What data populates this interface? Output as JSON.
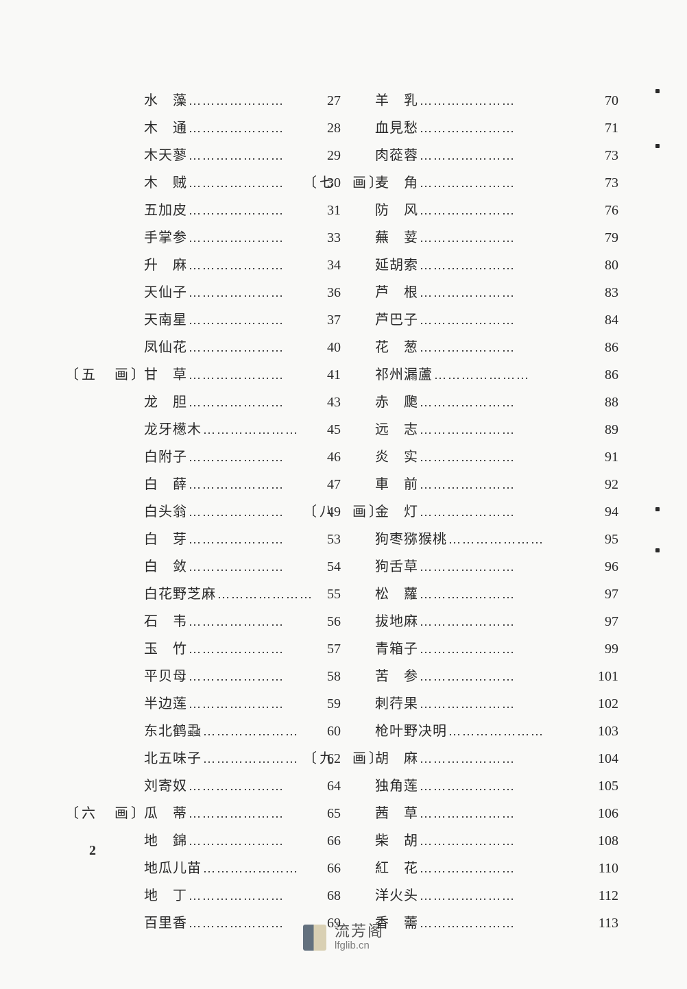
{
  "page_number": "2",
  "watermark": {
    "cn": "流芳阁",
    "en": "lfglib.cn"
  },
  "columns": [
    {
      "entries": [
        {
          "name": "水　藻",
          "page": "27"
        },
        {
          "name": "木　通",
          "page": "28"
        },
        {
          "name": "木天蓼",
          "page": "29"
        },
        {
          "name": "木　贼",
          "page": "30"
        },
        {
          "name": "五加皮",
          "page": "31"
        },
        {
          "name": "手掌参",
          "page": "33"
        },
        {
          "name": "升　麻",
          "page": "34"
        },
        {
          "name": "天仙子",
          "page": "36"
        },
        {
          "name": "天南星",
          "page": "37"
        },
        {
          "name": "凤仙花",
          "page": "40"
        },
        {
          "section": "〔五　画〕",
          "name": "甘　草",
          "page": "41"
        },
        {
          "name": "龙　胆",
          "page": "43"
        },
        {
          "name": "龙牙檧木",
          "page": "45"
        },
        {
          "name": "白附子",
          "page": "46"
        },
        {
          "name": "白　薛",
          "page": "47"
        },
        {
          "name": "白头翁",
          "page": "49"
        },
        {
          "name": "白　芽",
          "page": "53"
        },
        {
          "name": "白　敛",
          "page": "54"
        },
        {
          "name": "白花野芝麻",
          "page": "55"
        },
        {
          "name": "石　韦",
          "page": "56"
        },
        {
          "name": "玉　竹",
          "page": "57"
        },
        {
          "name": "平贝母",
          "page": "58"
        },
        {
          "name": "半边莲",
          "page": "59"
        },
        {
          "name": "东北鹤蝨",
          "page": "60"
        },
        {
          "name": "北五味子",
          "page": "62"
        },
        {
          "name": "刘寄奴",
          "page": "64"
        },
        {
          "section": "〔六　画〕",
          "name": "瓜　蒂",
          "page": "65"
        },
        {
          "name": "地　錦",
          "page": "66"
        },
        {
          "name": "地瓜儿苗",
          "page": "66"
        },
        {
          "name": "地　丁",
          "page": "68"
        },
        {
          "name": "百里香",
          "page": "69"
        }
      ]
    },
    {
      "entries": [
        {
          "name": "羊　乳",
          "page": "70"
        },
        {
          "name": "血見愁",
          "page": "71"
        },
        {
          "name": "肉蓯蓉",
          "page": "73"
        },
        {
          "section": "〔七　画〕",
          "name": "麦　角",
          "page": "73"
        },
        {
          "name": "防　风",
          "page": "76"
        },
        {
          "name": "蕪　荽",
          "page": "79"
        },
        {
          "name": "延胡索",
          "page": "80"
        },
        {
          "name": "芦　根",
          "page": "83"
        },
        {
          "name": "芦巴子",
          "page": "84"
        },
        {
          "name": "花　葱",
          "page": "86"
        },
        {
          "name": "祁州漏蘆",
          "page": "86"
        },
        {
          "name": "赤　瓟",
          "page": "88"
        },
        {
          "name": "远　志",
          "page": "89"
        },
        {
          "name": "炎　实",
          "page": "91"
        },
        {
          "name": "車　前",
          "page": "92"
        },
        {
          "section": "〔八　画〕",
          "name": "金　灯",
          "page": "94"
        },
        {
          "name": "狗枣猕猴桃",
          "page": "95"
        },
        {
          "name": "狗舌草",
          "page": "96"
        },
        {
          "name": "松　蘿",
          "page": "97"
        },
        {
          "name": "拔地麻",
          "page": "97"
        },
        {
          "name": "青箱子",
          "page": "99"
        },
        {
          "name": "苦　参",
          "page": "101"
        },
        {
          "name": "刺荇果",
          "page": "102"
        },
        {
          "name": "枪叶野决明",
          "page": "103"
        },
        {
          "section": "〔九　画〕",
          "name": "胡　麻",
          "page": "104"
        },
        {
          "name": "独角莲",
          "page": "105"
        },
        {
          "name": "茜　草",
          "page": "106"
        },
        {
          "name": "柴　胡",
          "page": "108"
        },
        {
          "name": "紅　花",
          "page": "110"
        },
        {
          "name": "洋火头",
          "page": "112"
        },
        {
          "name": "香　薷",
          "page": "113"
        }
      ]
    }
  ]
}
